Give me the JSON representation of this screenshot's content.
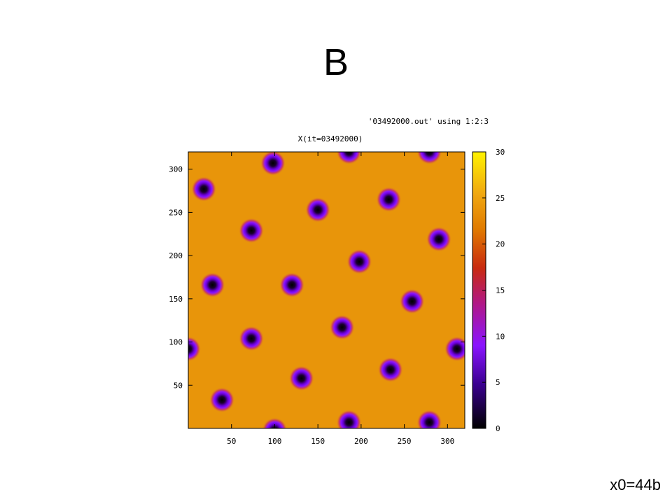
{
  "slide": {
    "title": "B",
    "footer": "x0=44b"
  },
  "chart_data": {
    "type": "heatmap",
    "title": "X(it=03492000)",
    "key_label": "'03492000.out' using 1:2:3",
    "xlabel": "",
    "ylabel": "",
    "xlim": [
      0,
      320
    ],
    "ylim": [
      0,
      320
    ],
    "x_ticks": [
      "50",
      "100",
      "150",
      "200",
      "250",
      "300"
    ],
    "y_ticks": [
      "50",
      "100",
      "150",
      "200",
      "250",
      "300"
    ],
    "colorbar": {
      "range": [
        0,
        30
      ],
      "ticks": [
        "0",
        "5",
        "10",
        "15",
        "20",
        "25",
        "30"
      ],
      "palette": [
        "#000000",
        "#6a00d8",
        "#8a14ff",
        "#c01e6a",
        "#c83a10",
        "#e07a00",
        "#ee9a10",
        "#fff200"
      ]
    },
    "background_value": 24,
    "spots": [
      {
        "x": 98,
        "y": 307,
        "value": 0
      },
      {
        "x": 18,
        "y": 277,
        "value": 0
      },
      {
        "x": 150,
        "y": 253,
        "value": 0
      },
      {
        "x": 232,
        "y": 265,
        "value": 0
      },
      {
        "x": 73,
        "y": 229,
        "value": 0
      },
      {
        "x": 290,
        "y": 219,
        "value": 0
      },
      {
        "x": 198,
        "y": 193,
        "value": 0
      },
      {
        "x": 28,
        "y": 166,
        "value": 0
      },
      {
        "x": 120,
        "y": 166,
        "value": 0
      },
      {
        "x": 259,
        "y": 147,
        "value": 0
      },
      {
        "x": 178,
        "y": 117,
        "value": 0
      },
      {
        "x": 73,
        "y": 104,
        "value": 0
      },
      {
        "x": 311,
        "y": 92,
        "value": 0
      },
      {
        "x": 0,
        "y": 92,
        "value": 0
      },
      {
        "x": 234,
        "y": 68,
        "value": 0
      },
      {
        "x": 131,
        "y": 58,
        "value": 0
      },
      {
        "x": 39,
        "y": 33,
        "value": 0
      },
      {
        "x": 186,
        "y": 7,
        "value": 0
      },
      {
        "x": 279,
        "y": 7,
        "value": 0
      },
      {
        "x": 186,
        "y": 320,
        "value": 0
      },
      {
        "x": 279,
        "y": 320,
        "value": 0
      },
      {
        "x": 100,
        "y": -2,
        "value": 0
      }
    ]
  }
}
